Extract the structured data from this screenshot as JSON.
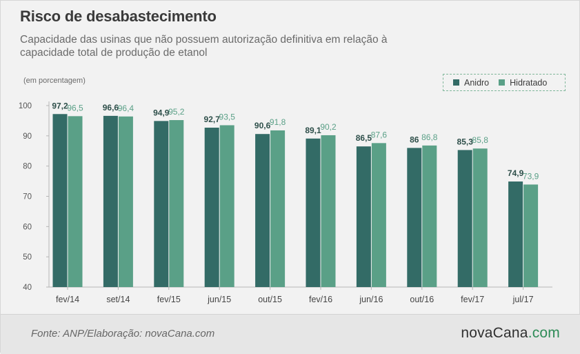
{
  "header": {
    "title": "Risco de desabastecimento",
    "subtitle": "Capacidade das usinas que não possuem autorização definitiva em relação à capacidade total de produção de etanol",
    "unit_note": "(em porcentagem)"
  },
  "legend": {
    "anidro_label": "Anidro",
    "hidratado_label": "Hidratado"
  },
  "footer": {
    "source": "Fonte: ANP/Elaboração: novaCana.com",
    "logo_main": "novaCana",
    "logo_suffix": ".com"
  },
  "colors": {
    "anidro": "#336b66",
    "hidratado": "#5aa087",
    "anidro_label": "#2e4f4a",
    "hidratado_label": "#5aa087"
  },
  "chart_data": {
    "type": "bar",
    "title": "Risco de desabastecimento",
    "ylabel": "(em porcentagem)",
    "ylim": [
      40,
      100
    ],
    "yticks": [
      40,
      50,
      60,
      70,
      80,
      90,
      100
    ],
    "grid": false,
    "legend_position": "top-right",
    "categories": [
      "fev/14",
      "set/14",
      "fev/15",
      "jun/15",
      "out/15",
      "fev/16",
      "jun/16",
      "out/16",
      "fev/17",
      "jul/17"
    ],
    "series": [
      {
        "name": "Anidro",
        "values": [
          97.2,
          96.6,
          94.9,
          92.7,
          90.6,
          89.1,
          86.5,
          86,
          85.3,
          74.9
        ],
        "labels": [
          "97,2",
          "96,6",
          "94,9",
          "92,7",
          "90,6",
          "89,1",
          "86,5",
          "86",
          "85,3",
          "74,9"
        ]
      },
      {
        "name": "Hidratado",
        "values": [
          96.5,
          96.4,
          95.2,
          93.5,
          91.8,
          90.2,
          87.6,
          86.8,
          85.8,
          73.9
        ],
        "labels": [
          "96,5",
          "96,4",
          "95,2",
          "93,5",
          "91,8",
          "90,2",
          "87,6",
          "86,8",
          "85,8",
          "73,9"
        ]
      }
    ]
  }
}
